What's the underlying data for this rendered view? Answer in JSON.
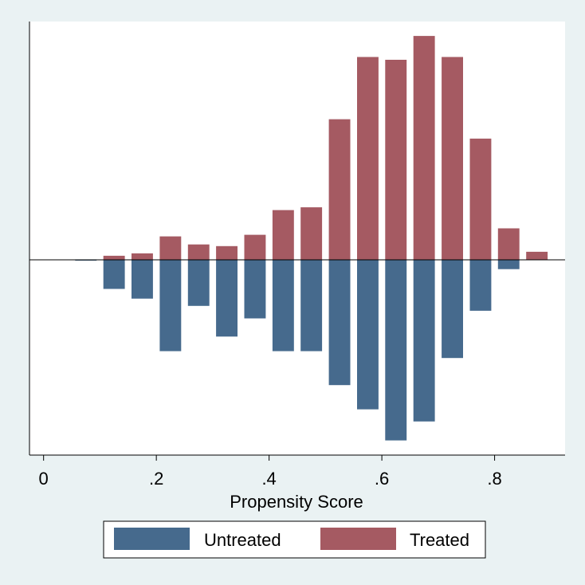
{
  "chart_data": {
    "type": "bar",
    "orientation": "mirrored",
    "xlabel": "Propensity Score",
    "x_ticks": [
      0,
      0.2,
      0.4,
      0.6,
      0.8
    ],
    "x_tick_labels": [
      "0",
      ".2",
      ".4",
      ".6",
      ".8"
    ],
    "xlim": [
      -0.025,
      0.925
    ],
    "bin_width": 0.05,
    "bin_centers": [
      0.075,
      0.125,
      0.175,
      0.225,
      0.275,
      0.325,
      0.375,
      0.425,
      0.475,
      0.525,
      0.575,
      0.625,
      0.675,
      0.725,
      0.775,
      0.825,
      0.875
    ],
    "y_axis_shown": false,
    "grid": false,
    "legend_position": "bottom",
    "colors": {
      "untreated": "#466a8d",
      "treated": "#a55a62",
      "plot_bg": "#ffffff",
      "page_bg": "#eaf2f3"
    },
    "series": [
      {
        "name": "Untreated",
        "direction": "down",
        "values": [
          0.2,
          7.2,
          9.6,
          22.6,
          11.4,
          19.0,
          14.5,
          22.6,
          22.6,
          31.0,
          37.0,
          44.7,
          40.0,
          24.3,
          12.6,
          2.3,
          0
        ]
      },
      {
        "name": "Treated",
        "direction": "up",
        "values": [
          0,
          1.0,
          1.6,
          5.8,
          3.8,
          3.4,
          6.2,
          12.3,
          13.0,
          34.8,
          50.2,
          49.5,
          55.4,
          50.2,
          30.0,
          7.8,
          2.0
        ]
      }
    ],
    "legend": [
      "Untreated",
      "Treated"
    ]
  }
}
